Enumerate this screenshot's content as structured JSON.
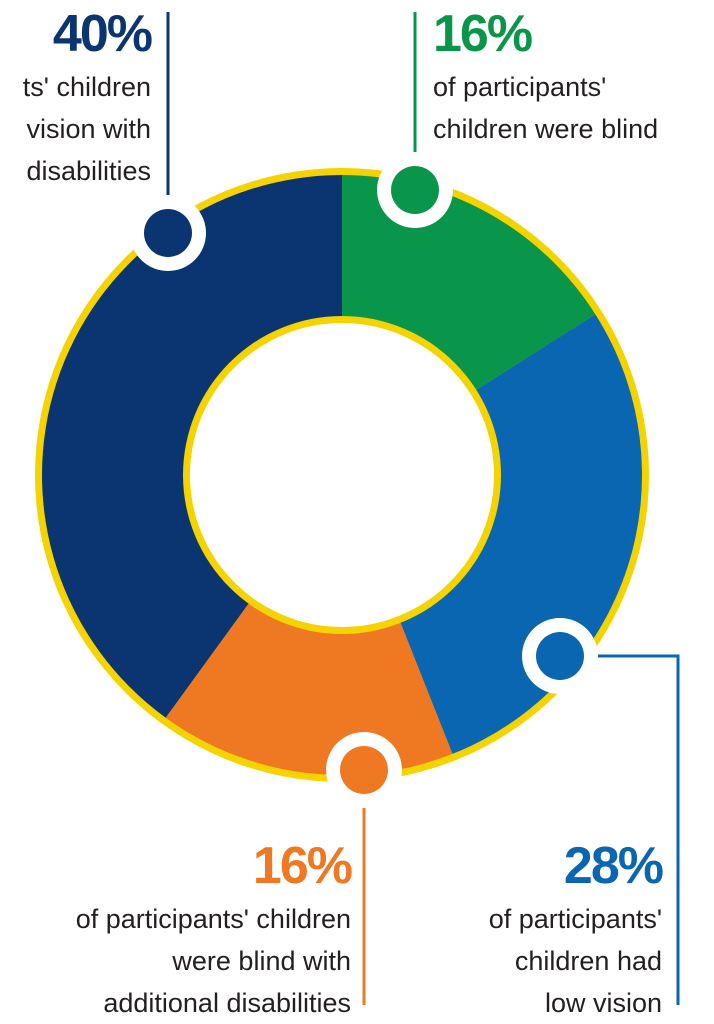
{
  "colors": {
    "ring": "#f4d300",
    "low_vision_with_disabilities": "#0b3570",
    "blind": "#0a964a",
    "low_vision": "#0b66b1",
    "blind_with_additional_disabilities": "#ef7823",
    "hole": "#ffffff"
  },
  "chart_data": {
    "type": "pie",
    "donut": true,
    "slices": [
      {
        "key": "blind",
        "value": 16,
        "label": "16%",
        "desc_lines": [
          "of participants'",
          "children were blind"
        ]
      },
      {
        "key": "low_vision",
        "value": 28,
        "label": "28%",
        "desc_lines": [
          "of participants'",
          "children had",
          "low vision"
        ]
      },
      {
        "key": "blind_with_additional_disabilities",
        "value": 16,
        "label": "16%",
        "desc_lines": [
          "of participants' children",
          "were blind with",
          "additional disabilities"
        ]
      },
      {
        "key": "low_vision_with_disabilities",
        "value": 40,
        "label": "40%",
        "desc_lines": [
          "ts' children",
          "vision with",
          "disabilities"
        ]
      }
    ]
  }
}
